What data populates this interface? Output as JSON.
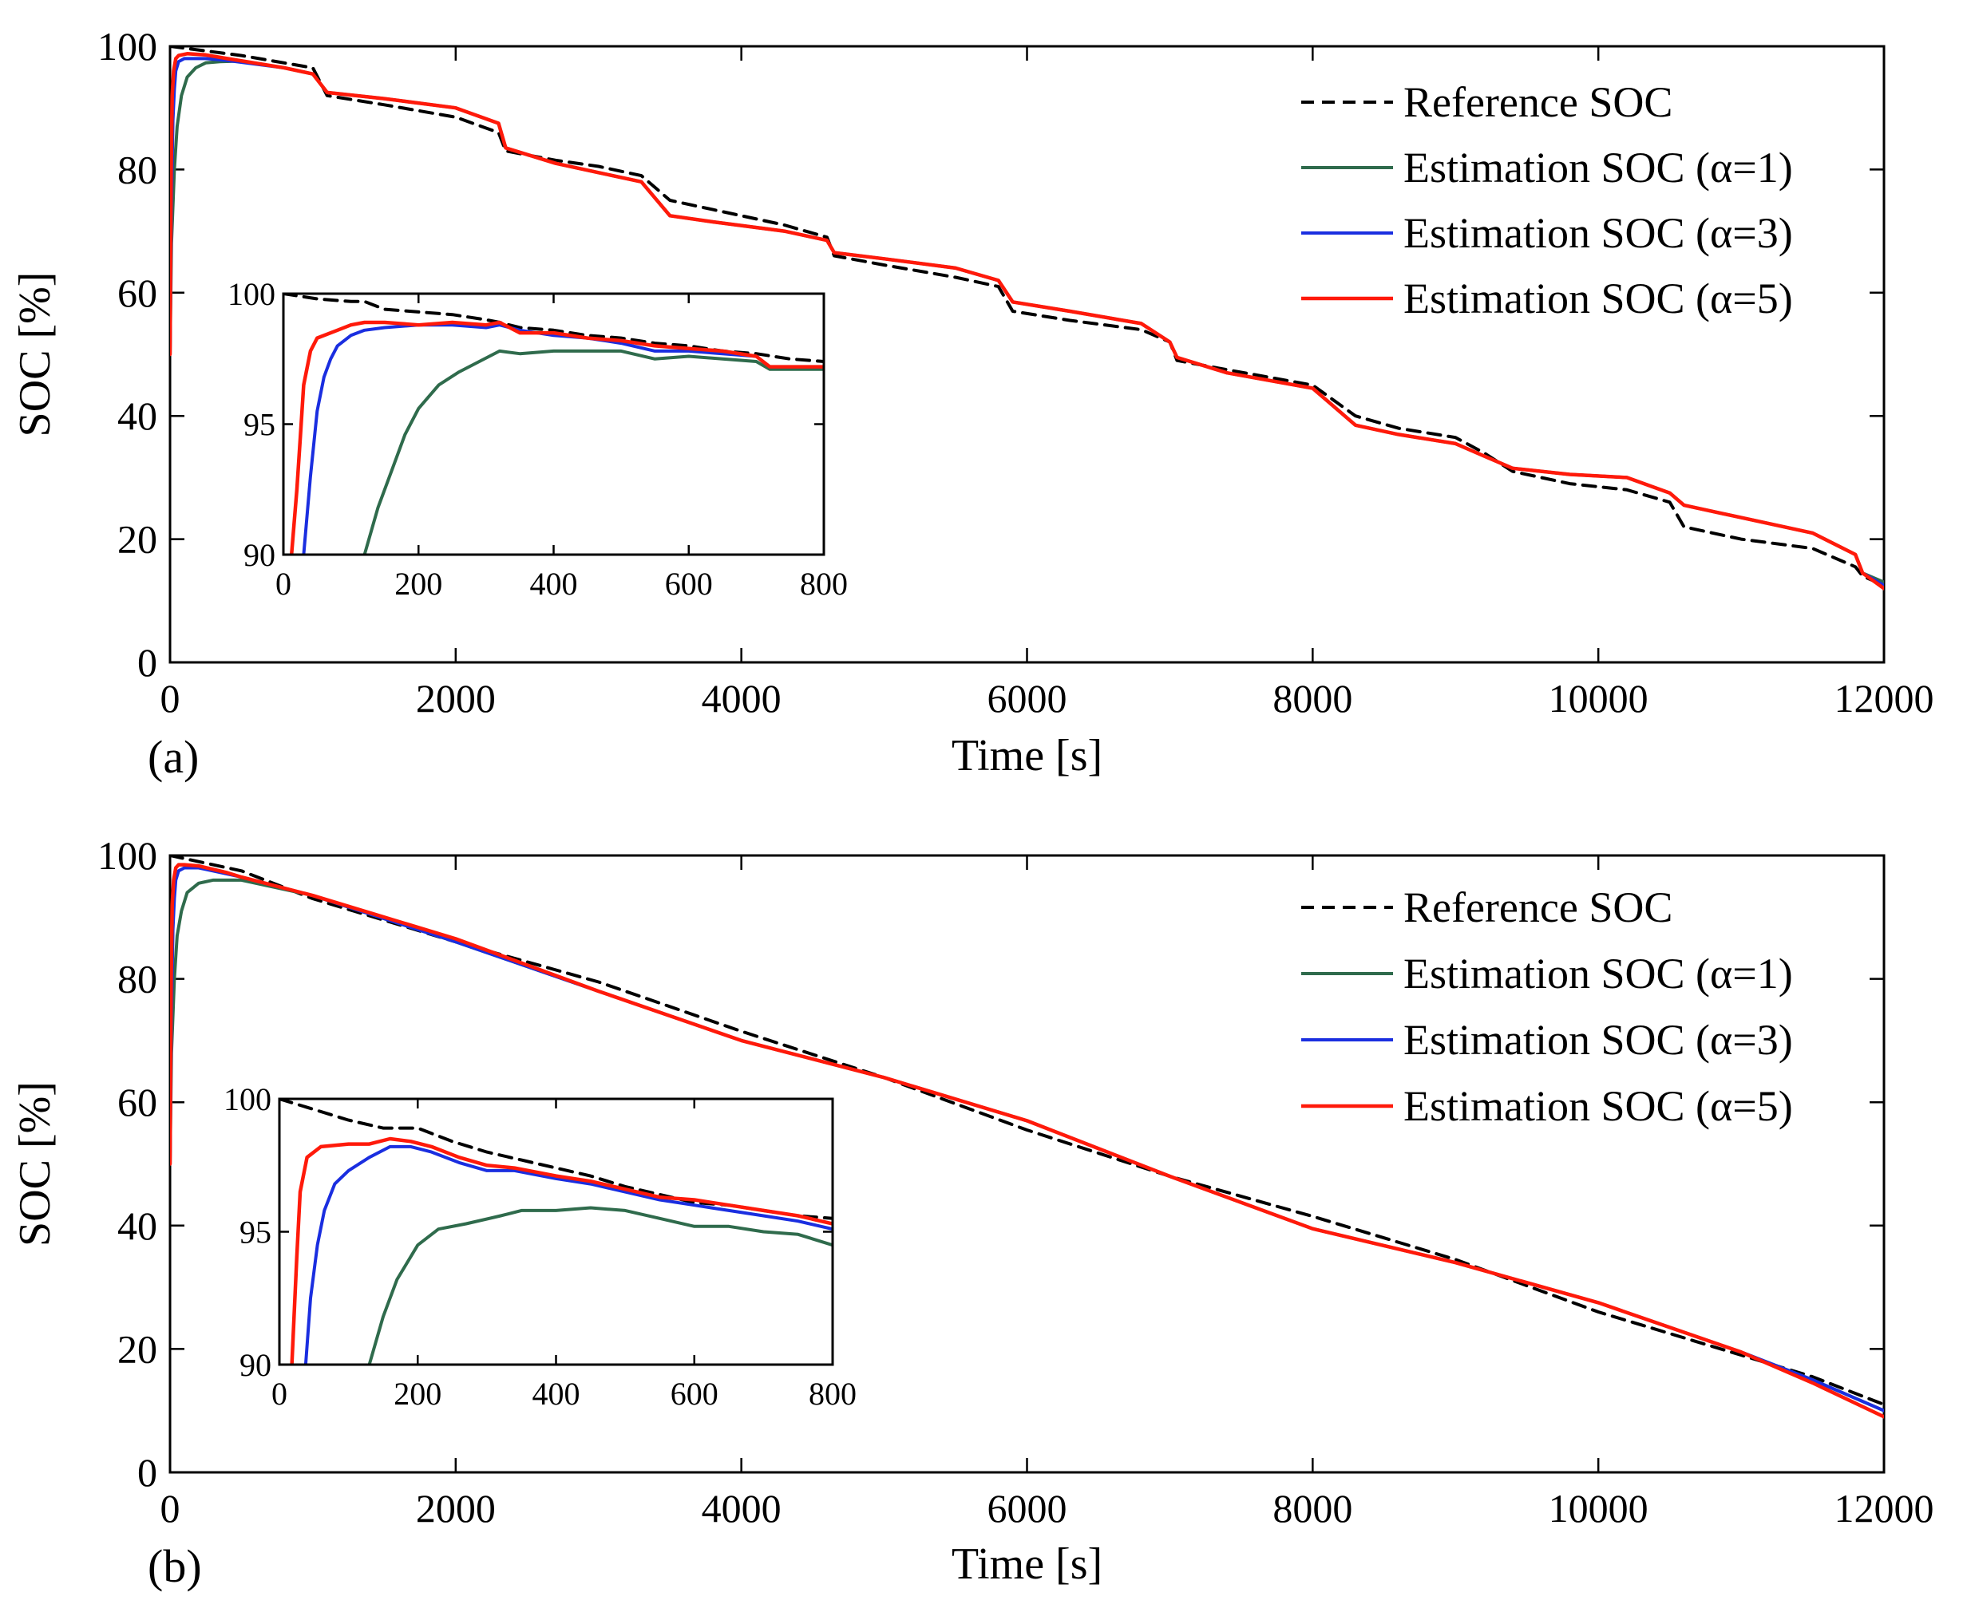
{
  "series_styles": [
    {
      "color": "#000000",
      "dash": "16 10",
      "width": 4
    },
    {
      "color": "#2f6b4c",
      "dash": "",
      "width": 4
    },
    {
      "color": "#1a2ee0",
      "dash": "",
      "width": 4
    },
    {
      "color": "#ff1a0a",
      "dash": "",
      "width": 4.5
    }
  ],
  "chart_data": [
    {
      "type": "line",
      "panel_label": "(a)",
      "xlabel": "Time [s]",
      "ylabel": "SOC [%]",
      "xlim": [
        0,
        12000
      ],
      "ylim": [
        0,
        100
      ],
      "xticks": [
        0,
        2000,
        4000,
        6000,
        8000,
        10000,
        12000
      ],
      "yticks": [
        0,
        20,
        40,
        60,
        80,
        100
      ],
      "legend_position": "top-right",
      "series": [
        {
          "name": "Reference SOC",
          "x": [
            0,
            500,
            1000,
            1100,
            1500,
            2000,
            2300,
            2350,
            2700,
            3000,
            3300,
            3500,
            3800,
            4300,
            4600,
            4650,
            5000,
            5500,
            5800,
            5900,
            6300,
            6800,
            7000,
            7050,
            7400,
            8000,
            8300,
            8600,
            9000,
            9200,
            9400,
            9800,
            10200,
            10500,
            10600,
            11000,
            11500,
            11800,
            11850,
            12000
          ],
          "y": [
            100,
            98.5,
            96.5,
            92,
            90.5,
            88.5,
            86,
            83,
            81.5,
            80.5,
            79,
            75,
            73.5,
            71,
            69,
            66,
            64.5,
            62.5,
            61,
            57,
            55.5,
            54,
            52,
            49,
            47.5,
            45,
            40,
            38,
            36.5,
            34,
            31,
            29,
            28,
            26,
            22,
            20,
            18.5,
            15.5,
            14,
            12.5
          ]
        },
        {
          "name": "Estimation SOC (α=1)",
          "x": [
            0,
            10,
            30,
            50,
            80,
            120,
            180,
            250,
            350,
            500,
            800,
            1000,
            1100,
            1500,
            2000,
            2300,
            2350,
            2700,
            3000,
            3300,
            3500,
            3800,
            4300,
            4600,
            4650,
            5000,
            5500,
            5800,
            5900,
            6300,
            6800,
            7000,
            7050,
            7400,
            8000,
            8300,
            8600,
            9000,
            9200,
            9400,
            9800,
            10200,
            10500,
            10600,
            11000,
            11500,
            11800,
            11850,
            12000
          ],
          "y": [
            50,
            68,
            80,
            87,
            92,
            95,
            96.5,
            97.3,
            97.5,
            97.6,
            96.5,
            95.5,
            92.5,
            91.5,
            90,
            87.5,
            83.5,
            81,
            79.5,
            78,
            72.5,
            71.5,
            70,
            68.5,
            66.5,
            65.5,
            64,
            62,
            58.5,
            57,
            55,
            52,
            49.5,
            47,
            44.5,
            38.5,
            37,
            35.5,
            33.5,
            31.5,
            30.5,
            30,
            27.5,
            25.5,
            23.5,
            21,
            17.5,
            14.5,
            13
          ]
        },
        {
          "name": "Estimation SOC (α=3)",
          "x": [
            0,
            10,
            20,
            30,
            40,
            60,
            100,
            250,
            400,
            800,
            1000,
            1100,
            1500,
            2000,
            2300,
            2350,
            2700,
            3000,
            3300,
            3500,
            3800,
            4300,
            4600,
            4650,
            5000,
            5500,
            5800,
            5900,
            6300,
            6800,
            7000,
            7050,
            7400,
            8000,
            8300,
            8600,
            9000,
            9200,
            9400,
            9800,
            10200,
            10500,
            10600,
            11000,
            11500,
            11800,
            11850,
            12000
          ],
          "y": [
            50,
            75,
            88,
            93,
            96,
            97.5,
            98,
            98,
            97.7,
            96.5,
            95.5,
            92.5,
            91.5,
            90,
            87.5,
            83.5,
            81,
            79.5,
            78,
            72.5,
            71.5,
            70,
            68.5,
            66.5,
            65.5,
            64,
            62,
            58.5,
            57,
            55,
            52,
            49.5,
            47,
            44.5,
            38.5,
            37,
            35.5,
            33.5,
            31.5,
            30.5,
            30,
            27.5,
            25.5,
            23.5,
            21,
            17.5,
            14.5,
            12.5
          ]
        },
        {
          "name": "Estimation SOC (α=5)",
          "x": [
            0,
            8,
            15,
            25,
            40,
            60,
            120,
            250,
            400,
            800,
            1000,
            1100,
            1500,
            2000,
            2300,
            2350,
            2700,
            3000,
            3300,
            3500,
            3800,
            4300,
            4600,
            4650,
            5000,
            5500,
            5800,
            5900,
            6300,
            6800,
            7000,
            7050,
            7400,
            8000,
            8300,
            8600,
            9000,
            9200,
            9400,
            9800,
            10200,
            10500,
            10600,
            11000,
            11500,
            11800,
            11850,
            12000
          ],
          "y": [
            50,
            80,
            92,
            96,
            98,
            98.5,
            98.8,
            98.6,
            98,
            96.5,
            95.5,
            92.5,
            91.5,
            90,
            87.5,
            83.5,
            81,
            79.5,
            78,
            72.5,
            71.5,
            70,
            68.5,
            66.5,
            65.5,
            64,
            62,
            58.5,
            57,
            55,
            52,
            49.5,
            47,
            44.5,
            38.5,
            37,
            35.5,
            33.5,
            31.5,
            30.5,
            30,
            27.5,
            25.5,
            23.5,
            21,
            17.5,
            14.5,
            12
          ]
        }
      ],
      "inset": {
        "xlim": [
          0,
          800
        ],
        "ylim": [
          90,
          100
        ],
        "xticks": [
          0,
          200,
          400,
          600,
          800
        ],
        "yticks": [
          90,
          95,
          100
        ],
        "series": [
          {
            "x": [
              0,
              50,
              100,
              120,
              150,
              200,
              250,
              300,
              320,
              350,
              400,
              450,
              500,
              550,
              600,
              650,
              700,
              750,
              800
            ],
            "y": [
              100,
              99.8,
              99.7,
              99.7,
              99.4,
              99.3,
              99.2,
              99.0,
              98.9,
              98.7,
              98.6,
              98.4,
              98.3,
              98.1,
              98.0,
              97.8,
              97.7,
              97.5,
              97.4
            ]
          },
          {
            "x": [
              120,
              140,
              160,
              180,
              200,
              230,
              260,
              290,
              320,
              350,
              400,
              450,
              500,
              550,
              600,
              650,
              700,
              720,
              800
            ],
            "y": [
              90,
              91.8,
              93.2,
              94.6,
              95.6,
              96.5,
              97.0,
              97.4,
              97.8,
              97.7,
              97.8,
              97.8,
              97.8,
              97.5,
              97.6,
              97.5,
              97.4,
              97.1,
              97.1
            ]
          },
          {
            "x": [
              30,
              40,
              50,
              60,
              70,
              80,
              100,
              120,
              150,
              200,
              250,
              300,
              320,
              350,
              400,
              450,
              500,
              550,
              600,
              650,
              700,
              720,
              800
            ],
            "y": [
              90,
              93,
              95.5,
              96.8,
              97.5,
              98.0,
              98.4,
              98.6,
              98.7,
              98.8,
              98.8,
              98.7,
              98.8,
              98.6,
              98.4,
              98.3,
              98.1,
              97.8,
              97.8,
              97.7,
              97.6,
              97.2,
              97.2
            ]
          },
          {
            "x": [
              12,
              20,
              25,
              30,
              40,
              50,
              80,
              100,
              120,
              150,
              200,
              250,
              300,
              320,
              350,
              400,
              450,
              500,
              550,
              600,
              650,
              700,
              720,
              800
            ],
            "y": [
              90,
              92.5,
              94.5,
              96.5,
              97.8,
              98.3,
              98.6,
              98.8,
              98.9,
              98.9,
              98.8,
              98.9,
              98.8,
              98.9,
              98.5,
              98.5,
              98.3,
              98.2,
              98.0,
              97.9,
              97.8,
              97.6,
              97.2,
              97.2
            ]
          }
        ]
      }
    },
    {
      "type": "line",
      "panel_label": "(b)",
      "xlabel": "Time [s]",
      "ylabel": "SOC [%]",
      "xlim": [
        0,
        12000
      ],
      "ylim": [
        0,
        100
      ],
      "xticks": [
        0,
        2000,
        4000,
        6000,
        8000,
        10000,
        12000
      ],
      "yticks": [
        0,
        20,
        40,
        60,
        80,
        100
      ],
      "legend_position": "top-right",
      "series": [
        {
          "name": "Reference SOC",
          "x": [
            0,
            500,
            1000,
            2000,
            3000,
            4000,
            5000,
            6000,
            7000,
            8000,
            9000,
            10000,
            11000,
            11500,
            12000
          ],
          "y": [
            100,
            97.5,
            93,
            86,
            79.5,
            71.5,
            64,
            55.5,
            48,
            41.5,
            34.5,
            26,
            19,
            15.5,
            11
          ]
        },
        {
          "name": "Estimation SOC (α=1)",
          "x": [
            0,
            10,
            30,
            50,
            80,
            120,
            200,
            300,
            400,
            500,
            1000,
            2000,
            3000,
            4000,
            5000,
            6000,
            7000,
            8000,
            9000,
            10000,
            11000,
            11500,
            12000
          ],
          "y": [
            50,
            68,
            80,
            87,
            91,
            94,
            95.5,
            96,
            96,
            96,
            93.5,
            86,
            78,
            70,
            64,
            57,
            48,
            39.5,
            34,
            27.5,
            19.5,
            15,
            10
          ]
        },
        {
          "name": "Estimation SOC (α=3)",
          "x": [
            0,
            10,
            20,
            30,
            40,
            60,
            100,
            200,
            400,
            500,
            1000,
            2000,
            3000,
            4000,
            5000,
            6000,
            7000,
            8000,
            9000,
            10000,
            11000,
            11500,
            12000
          ],
          "y": [
            50,
            75,
            88,
            93,
            96,
            97.5,
            98,
            98,
            97,
            96.5,
            93.5,
            86,
            78,
            70,
            64,
            57,
            48,
            39.5,
            34,
            27.5,
            19.5,
            15,
            10
          ]
        },
        {
          "name": "Estimation SOC (α=5)",
          "x": [
            0,
            8,
            15,
            25,
            40,
            60,
            100,
            200,
            400,
            500,
            1000,
            2000,
            3000,
            4000,
            5000,
            6000,
            7000,
            8000,
            9000,
            10000,
            11000,
            11500,
            12000
          ],
          "y": [
            50,
            80,
            92,
            96,
            98,
            98.5,
            98.5,
            98.3,
            97.2,
            96.5,
            93.5,
            86.5,
            78,
            70,
            64,
            57,
            48,
            39.5,
            34,
            27.5,
            19.5,
            14.5,
            9
          ]
        }
      ],
      "inset": {
        "xlim": [
          0,
          800
        ],
        "ylim": [
          90,
          100
        ],
        "xticks": [
          0,
          200,
          400,
          600,
          800
        ],
        "yticks": [
          90,
          95,
          100
        ],
        "series": [
          {
            "x": [
              0,
              50,
              100,
              150,
              200,
              250,
              300,
              350,
              400,
              450,
              500,
              550,
              600,
              650,
              700,
              750,
              800
            ],
            "y": [
              100,
              99.6,
              99.2,
              98.9,
              98.9,
              98.4,
              98.0,
              97.7,
              97.4,
              97.1,
              96.7,
              96.4,
              96.1,
              96.0,
              95.8,
              95.6,
              95.5
            ]
          },
          {
            "x": [
              130,
              150,
              170,
              200,
              230,
              270,
              320,
              350,
              400,
              450,
              500,
              550,
              600,
              650,
              700,
              750,
              800
            ],
            "y": [
              90,
              91.8,
              93.2,
              94.5,
              95.1,
              95.3,
              95.6,
              95.8,
              95.8,
              95.9,
              95.8,
              95.5,
              95.2,
              95.2,
              95.0,
              94.9,
              94.5
            ]
          },
          {
            "x": [
              38,
              45,
              55,
              65,
              80,
              100,
              130,
              160,
              190,
              220,
              260,
              300,
              340,
              400,
              450,
              500,
              550,
              600,
              650,
              700,
              750,
              800
            ],
            "y": [
              90,
              92.5,
              94.5,
              95.8,
              96.8,
              97.3,
              97.8,
              98.2,
              98.2,
              98.0,
              97.6,
              97.3,
              97.3,
              97.0,
              96.8,
              96.5,
              96.2,
              96.0,
              95.8,
              95.6,
              95.4,
              95.1
            ]
          },
          {
            "x": [
              18,
              25,
              30,
              40,
              60,
              100,
              130,
              160,
              190,
              220,
              260,
              300,
              340,
              400,
              450,
              500,
              550,
              600,
              650,
              700,
              750,
              800
            ],
            "y": [
              90,
              94,
              96.5,
              97.8,
              98.2,
              98.3,
              98.3,
              98.5,
              98.4,
              98.2,
              97.8,
              97.5,
              97.4,
              97.1,
              96.9,
              96.6,
              96.3,
              96.2,
              96.0,
              95.8,
              95.6,
              95.3
            ]
          }
        ]
      }
    }
  ]
}
